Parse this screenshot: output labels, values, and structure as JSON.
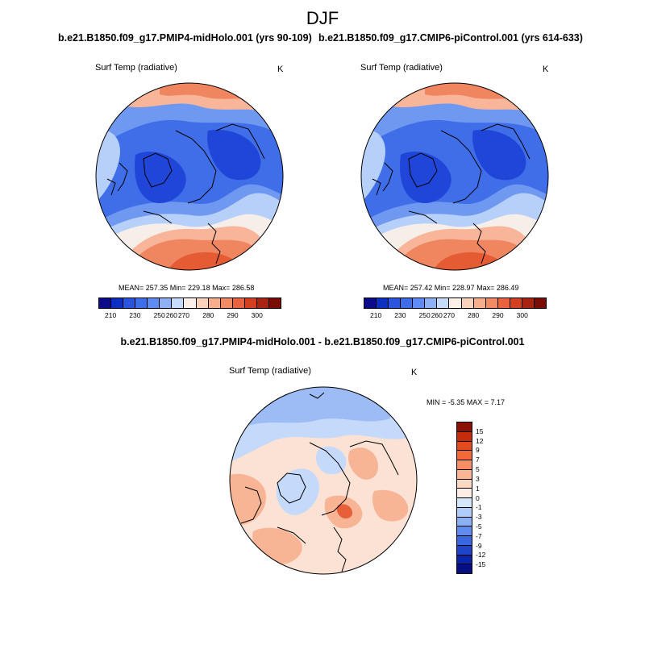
{
  "figure": {
    "title": "DJF",
    "diff_title": "b.e21.B1850.f09_g17.PMIP4-midHolo.001 - b.e21.B1850.f09_g17.CMIP6-piControl.001"
  },
  "panels": {
    "left": {
      "case_title": "b.e21.B1850.f09_g17.PMIP4-midHolo.001 (yrs 90-109)",
      "variable": "Surf Temp (radiative)",
      "units": "K",
      "stats": "MEAN= 257.35  Min= 229.18  Max= 286.58"
    },
    "right": {
      "case_title": "b.e21.B1850.f09_g17.CMIP6-piControl.001 (yrs 614-633)",
      "variable": "Surf Temp (radiative)",
      "units": "K",
      "stats": "MEAN= 257.42  Min= 228.97  Max= 286.49"
    },
    "diff": {
      "variable": "Surf Temp (radiative)",
      "units": "K",
      "stats": "MIN =  -5.35 MAX =   7.17"
    }
  },
  "colorbars": {
    "abs_colors": [
      "#0a0a8a",
      "#0b2fc0",
      "#2b55dc",
      "#3f6fe8",
      "#5e8cf2",
      "#8db0f6",
      "#c7dcfb",
      "#fdf0e8",
      "#fbd2bc",
      "#f7ae8d",
      "#f28a63",
      "#e8633e",
      "#d2401f",
      "#a82410",
      "#7a0c04"
    ],
    "abs_ticks": [
      "210",
      "230",
      "250",
      "260",
      "270",
      "280",
      "290",
      "300"
    ],
    "diff_colors": [
      "#8a1000",
      "#c42c0c",
      "#e34a1e",
      "#f26a3a",
      "#f78d63",
      "#fab592",
      "#fcd7c2",
      "#fdeee5",
      "#d6e6fb",
      "#b0ccf8",
      "#8cb0f4",
      "#5f8cee",
      "#3a66e0",
      "#1f44c8",
      "#0b24a8",
      "#050f82"
    ],
    "diff_ticks": [
      "15",
      "12",
      "9",
      "7",
      "5",
      "3",
      "1",
      "0",
      "-1",
      "-3",
      "-5",
      "-7",
      "-9",
      "-12",
      "-15"
    ]
  },
  "map_colors": {
    "cold_core": "#1f46d8",
    "cold": "#3f6ee8",
    "mid_blue": "#6f98f0",
    "light_blue": "#b7d0fa",
    "pale": "#f6efe9",
    "warm1": "#f8b59a",
    "warm2": "#f08660",
    "warm3": "#e55c34",
    "diff_neutral": "#fbe2d4",
    "diff_warm": "#f7b596",
    "diff_hot": "#e8603a",
    "diff_cool": "#c5dafa",
    "diff_cooler": "#9dbcf5"
  }
}
